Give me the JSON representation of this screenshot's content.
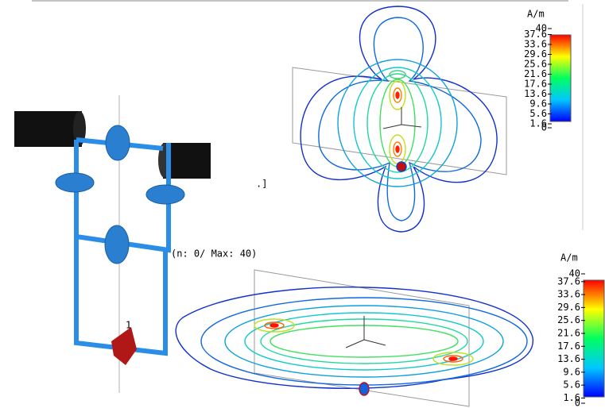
{
  "top_legend": {
    "unit": "A/m",
    "ticks": [
      40,
      37.6,
      33.6,
      29.6,
      25.6,
      21.6,
      17.6,
      13.6,
      9.6,
      5.6,
      1.6,
      0
    ]
  },
  "bottom_legend": {
    "unit": "A/m",
    "ticks": [
      40,
      37.6,
      33.6,
      29.6,
      25.6,
      21.6,
      17.6,
      13.6,
      9.6,
      5.6,
      1.6,
      0
    ]
  },
  "caption": "(n: 0/ Max: 40)",
  "port_label": "1",
  "fragment": ".]"
}
